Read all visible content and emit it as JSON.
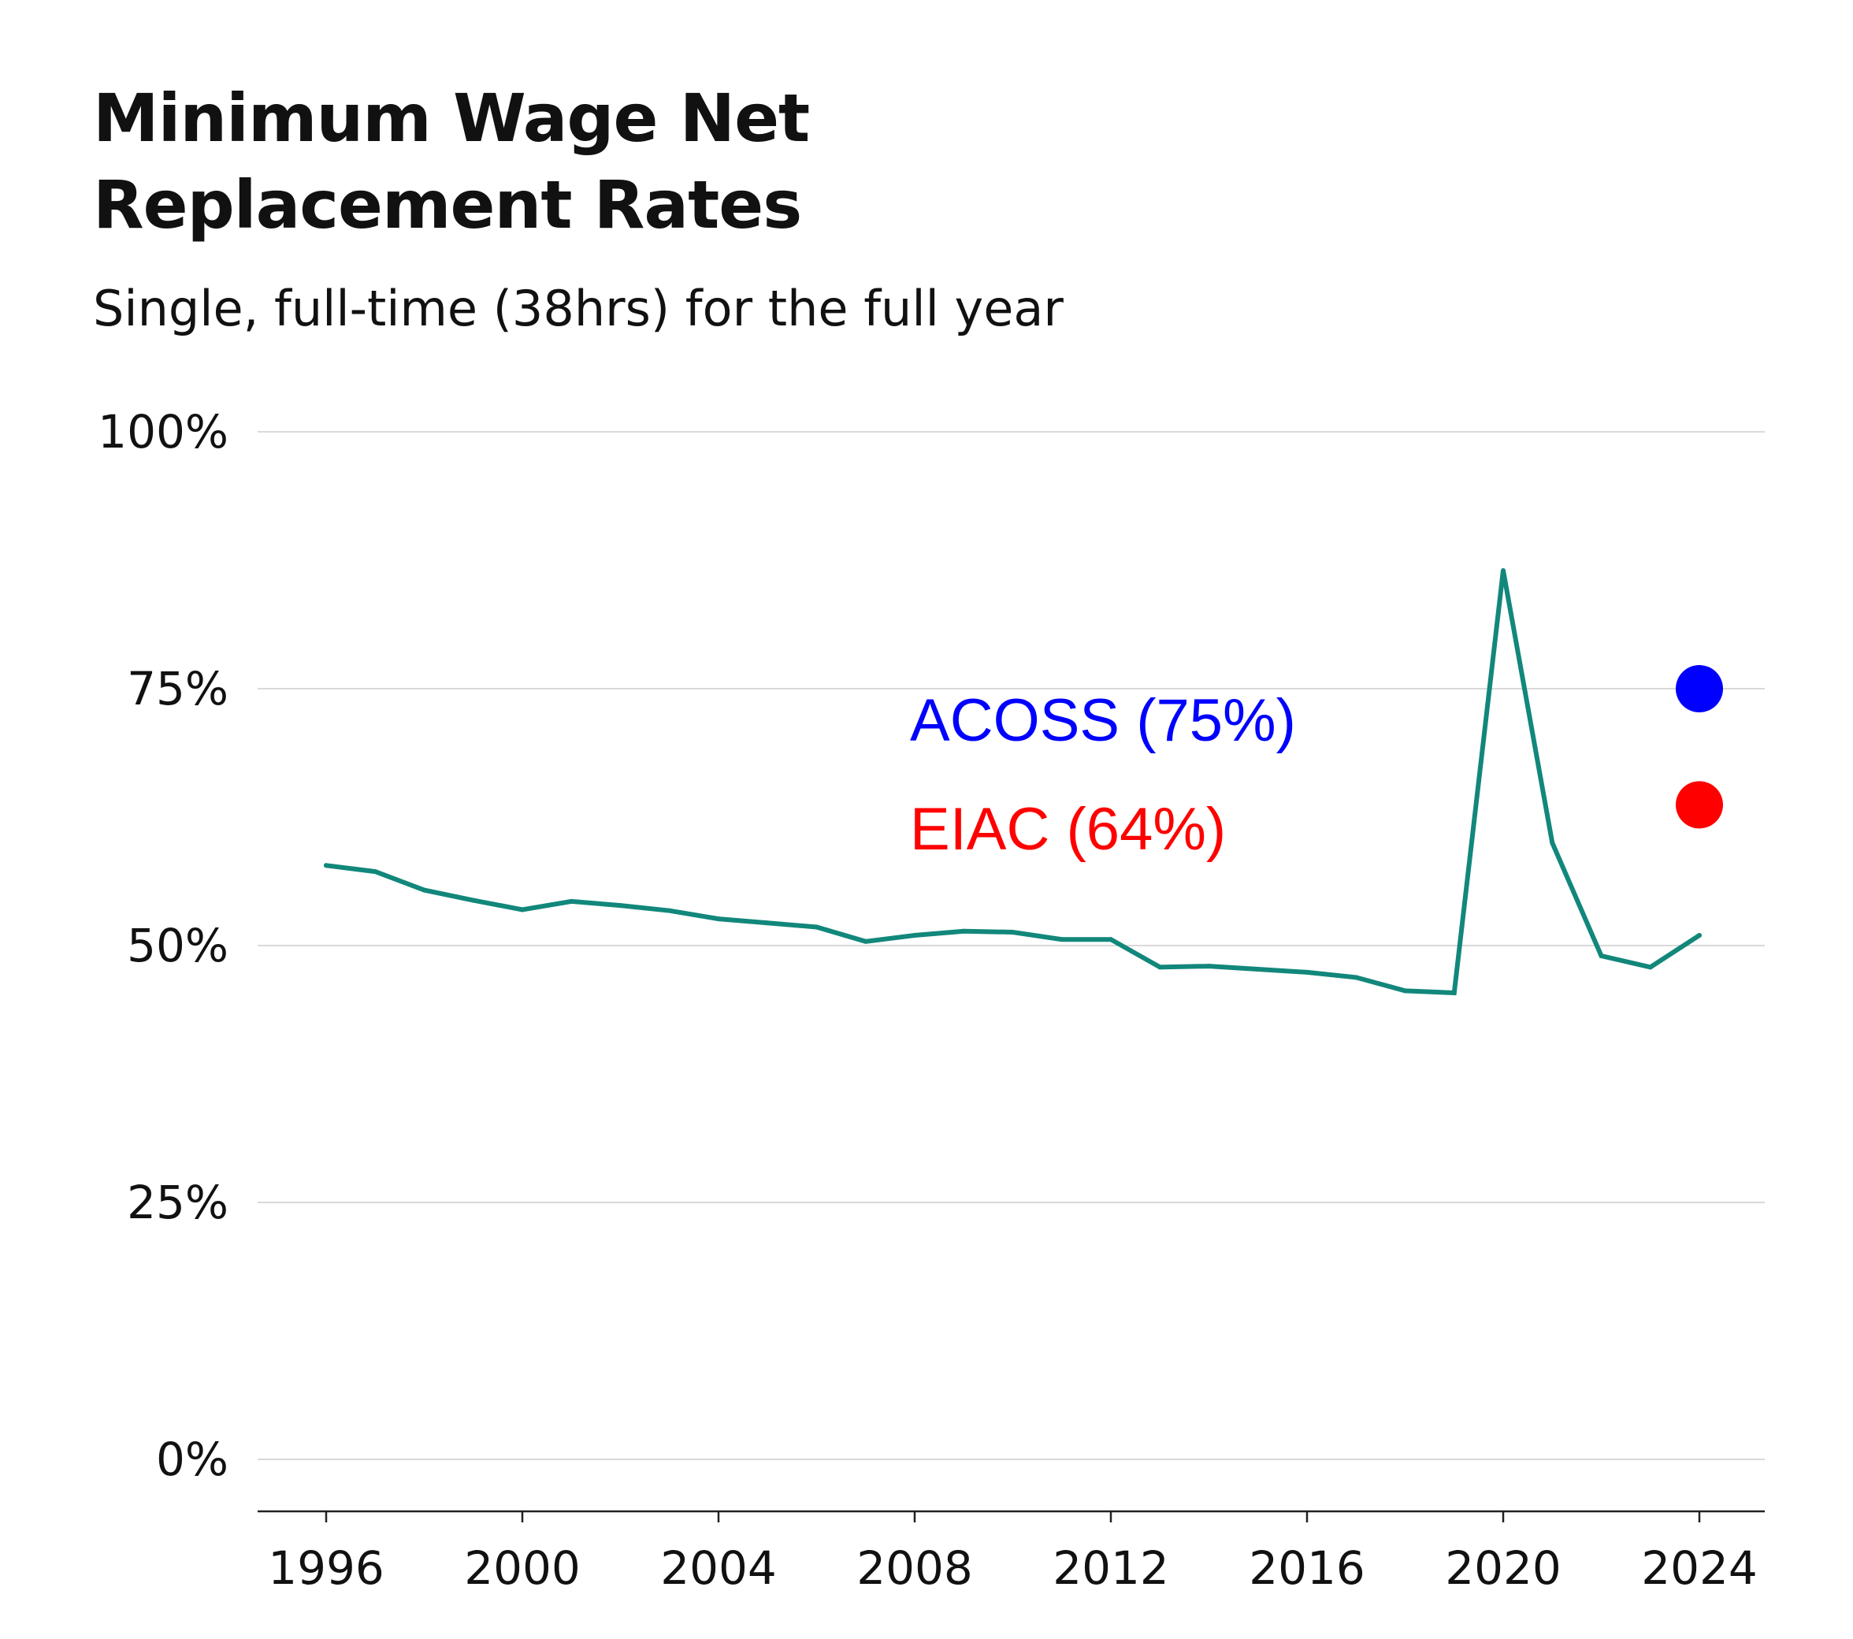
{
  "chart_data": {
    "type": "line",
    "title_lines": [
      "Minimum Wage Net",
      "Replacement Rates"
    ],
    "subtitle": "Single, full-time (38hrs) for the full year",
    "xlabel": "",
    "ylabel": "",
    "xlim": [
      1996,
      2024
    ],
    "ylim": [
      0,
      100
    ],
    "x_ticks": [
      1996,
      2000,
      2004,
      2008,
      2012,
      2016,
      2020,
      2024
    ],
    "y_ticks": [
      {
        "value": 0,
        "label": "0%"
      },
      {
        "value": 25,
        "label": "25%"
      },
      {
        "value": 50,
        "label": "50%"
      },
      {
        "value": 75,
        "label": "75%"
      },
      {
        "value": 100,
        "label": "100%"
      }
    ],
    "grid": true,
    "series": [
      {
        "color": "#12877b",
        "x": [
          1996,
          1997,
          1998,
          1999,
          2000,
          2001,
          2002,
          2003,
          2004,
          2005,
          2006,
          2007,
          2008,
          2009,
          2010,
          2011,
          2012,
          2013,
          2014,
          2015,
          2016,
          2017,
          2018,
          2019,
          2020,
          2021,
          2022,
          2023,
          2024
        ],
        "values": [
          57.8,
          57.2,
          55.4,
          54.4,
          53.5,
          54.3,
          53.9,
          53.4,
          52.6,
          52.2,
          51.8,
          50.4,
          51.0,
          51.4,
          51.3,
          50.6,
          50.6,
          47.9,
          48.0,
          47.7,
          47.4,
          46.9,
          45.6,
          45.4,
          86.5,
          60.0,
          49.0,
          47.9,
          51.0
        ]
      }
    ],
    "reference_points": [
      {
        "label": "ACOSS (75%)",
        "x": 2024,
        "y": 75,
        "color": "#0000ff"
      },
      {
        "label": "EIAC (64%)",
        "x": 2024,
        "y": 63.7,
        "color": "#ff0000"
      }
    ]
  }
}
